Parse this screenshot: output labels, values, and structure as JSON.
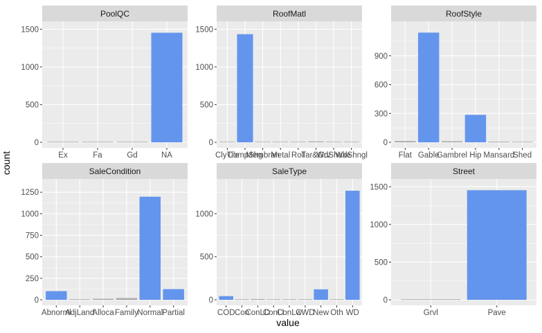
{
  "figure": {
    "xlabel": "value",
    "ylabel": "count",
    "colors": {
      "bar": "#6495ED",
      "bar_outline": "#A9A9A9",
      "panel_bg": "#EBEBEB",
      "strip_bg": "#D9D9D9",
      "grid": "#FFFFFF",
      "text": "#4D4D4D",
      "strip_text": "#1A1A1A"
    }
  },
  "chart_data": [
    {
      "type": "bar",
      "title": "PoolQC",
      "categories": [
        "Ex",
        "Fa",
        "Gd",
        "NA"
      ],
      "values": [
        2,
        2,
        3,
        1453
      ],
      "ylim": [
        0,
        1530
      ],
      "yticks": [
        0,
        500,
        1000,
        1500
      ]
    },
    {
      "type": "bar",
      "title": "RoofMatl",
      "categories": [
        "ClyTile",
        "CompShg",
        "Membran",
        "Metal",
        "Roll",
        "Tar&Grv",
        "WdShake",
        "WdShngl"
      ],
      "values": [
        1,
        1434,
        1,
        1,
        1,
        11,
        5,
        6
      ],
      "ylim": [
        0,
        1530
      ],
      "yticks": [
        0,
        500,
        1000,
        1500
      ]
    },
    {
      "type": "bar",
      "title": "RoofStyle",
      "categories": [
        "Flat",
        "Gable",
        "Gambrel",
        "Hip",
        "Mansard",
        "Shed"
      ],
      "values": [
        13,
        1141,
        11,
        286,
        7,
        2
      ],
      "ylim": [
        0,
        1200
      ],
      "yticks": [
        0,
        300,
        600,
        900
      ]
    },
    {
      "type": "bar",
      "title": "SaleCondition",
      "categories": [
        "Abnorml",
        "AdjLand",
        "Alloca",
        "Family",
        "Normal",
        "Partial"
      ],
      "values": [
        101,
        4,
        12,
        20,
        1198,
        125
      ],
      "ylim": [
        0,
        1340
      ],
      "yticks": [
        0,
        250,
        500,
        750,
        1000,
        1250
      ]
    },
    {
      "type": "bar",
      "title": "SaleType",
      "categories": [
        "COD",
        "Con",
        "ConLD",
        "ConLI",
        "ConLw",
        "CWD",
        "New",
        "Oth",
        "WD"
      ],
      "values": [
        43,
        2,
        9,
        5,
        5,
        4,
        122,
        3,
        1267
      ],
      "ylim": [
        0,
        1340
      ],
      "yticks": [
        0,
        500,
        1000
      ]
    },
    {
      "type": "bar",
      "title": "Street",
      "categories": [
        "Grvl",
        "Pave"
      ],
      "values": [
        6,
        1454
      ],
      "ylim": [
        0,
        1530
      ],
      "yticks": [
        0,
        500,
        1000,
        1500
      ]
    }
  ]
}
